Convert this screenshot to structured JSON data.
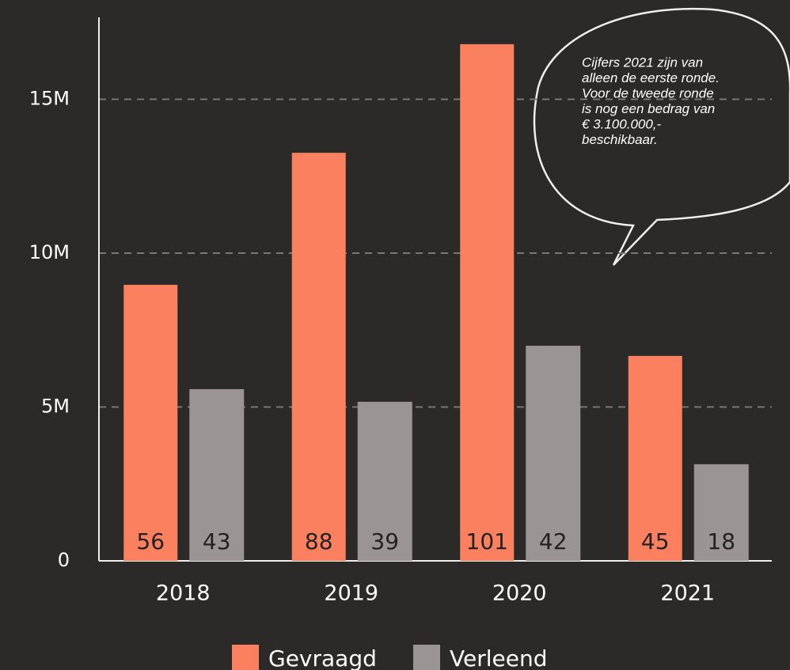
{
  "chart_data": {
    "type": "bar",
    "categories": [
      "2018",
      "2019",
      "2020",
      "2021"
    ],
    "series": [
      {
        "name": "Gevraagd",
        "color": "#fa8060",
        "values": [
          8970000,
          13260000,
          16790000,
          6660000
        ],
        "bar_labels": [
          "56",
          "88",
          "101",
          "45"
        ]
      },
      {
        "name": "Verleend",
        "color": "#9a9594",
        "values": [
          5580000,
          5170000,
          6990000,
          3140000
        ],
        "bar_labels": [
          "43",
          "39",
          "42",
          "18"
        ]
      }
    ],
    "ylim": [
      0,
      17660000
    ],
    "yticks": [
      0,
      {
        "value": 5000000,
        "label": "5M"
      },
      {
        "value": 10000000,
        "label": "10M"
      },
      {
        "value": 15000000,
        "label": "15M"
      }
    ],
    "grid": true,
    "legend": "bottom",
    "annotation": [
      "Cijfers 2021 zijn van",
      "alleen de eerste ronde.",
      "Voor de tweede ronde",
      "is nog een bedrag van",
      "€ 3.100.000,-",
      "beschikbaar."
    ]
  }
}
